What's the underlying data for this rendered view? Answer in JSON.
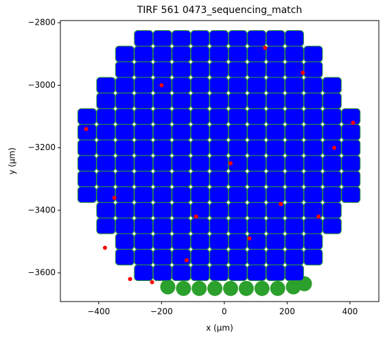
{
  "chart_data": {
    "type": "scatter",
    "title": "TIRF 561 0473_sequencing_match",
    "xlabel": "x (µm)",
    "ylabel": "y (µm)",
    "xlim": [
      -522,
      492
    ],
    "ylim": [
      -3692,
      -2793
    ],
    "xticks": [
      {
        "value": -400,
        "label": "−400"
      },
      {
        "value": -200,
        "label": "−200"
      },
      0,
      200,
      400
    ],
    "yticks": [
      {
        "value": -3600,
        "label": "−3600"
      },
      {
        "value": -3400,
        "label": "−3400"
      },
      {
        "value": -3200,
        "label": "−3200"
      },
      {
        "value": -3000,
        "label": "−3000"
      },
      {
        "value": -2800,
        "label": "−2800"
      }
    ],
    "grid": false,
    "series": [
      {
        "color": "#2ca02c",
        "marker": "circle",
        "x": [
          -180,
          -130,
          -80,
          -30,
          20,
          70,
          120,
          170,
          220,
          255
        ],
        "values": [
          -3645,
          -3650,
          -3650,
          -3650,
          -3650,
          -3650,
          -3650,
          -3650,
          -3645,
          -3635
        ]
      },
      {
        "color": "#0000ff",
        "marker": "square",
        "x": [
          -257,
          -197,
          -137,
          -77,
          -17,
          43,
          103,
          163,
          223,
          -317,
          -257,
          -197,
          -137,
          -77,
          -17,
          43,
          103,
          163,
          223,
          283,
          -317,
          -257,
          -197,
          -137,
          -77,
          -17,
          43,
          103,
          163,
          223,
          283,
          -377,
          -317,
          -257,
          -197,
          -137,
          -77,
          -17,
          43,
          103,
          163,
          223,
          283,
          343,
          -377,
          -317,
          -257,
          -197,
          -137,
          -77,
          -17,
          43,
          103,
          163,
          223,
          283,
          343,
          -437,
          -377,
          -317,
          -257,
          -197,
          -137,
          -77,
          -17,
          43,
          103,
          163,
          223,
          283,
          343,
          403,
          -437,
          -377,
          -317,
          -257,
          -197,
          -137,
          -77,
          -17,
          43,
          103,
          163,
          223,
          283,
          343,
          403,
          -437,
          -377,
          -317,
          -257,
          -197,
          -137,
          -77,
          -17,
          43,
          103,
          163,
          223,
          283,
          343,
          403,
          -437,
          -377,
          -317,
          -257,
          -197,
          -137,
          -77,
          -17,
          43,
          103,
          163,
          223,
          283,
          343,
          403,
          -437,
          -377,
          -317,
          -257,
          -197,
          -137,
          -77,
          -17,
          43,
          103,
          163,
          223,
          283,
          343,
          403,
          -437,
          -377,
          -317,
          -257,
          -197,
          -137,
          -77,
          -17,
          43,
          103,
          163,
          223,
          283,
          343,
          403,
          -377,
          -317,
          -257,
          -197,
          -137,
          -77,
          -17,
          43,
          103,
          163,
          223,
          283,
          343,
          -377,
          -317,
          -257,
          -197,
          -137,
          -77,
          -17,
          43,
          103,
          163,
          223,
          283,
          343,
          -317,
          -257,
          -197,
          -137,
          -77,
          -17,
          43,
          103,
          163,
          223,
          283,
          -317,
          -257,
          -197,
          -137,
          -77,
          -17,
          43,
          103,
          163,
          223,
          283,
          -257,
          -197,
          -137,
          -77,
          -17,
          43,
          103,
          163,
          223
        ],
        "values": [
          -2850,
          -2850,
          -2850,
          -2850,
          -2850,
          -2850,
          -2850,
          -2850,
          -2850,
          -2900,
          -2900,
          -2900,
          -2900,
          -2900,
          -2900,
          -2900,
          -2900,
          -2900,
          -2900,
          -2900,
          -2950,
          -2950,
          -2950,
          -2950,
          -2950,
          -2950,
          -2950,
          -2950,
          -2950,
          -2950,
          -2950,
          -3000,
          -3000,
          -3000,
          -3000,
          -3000,
          -3000,
          -3000,
          -3000,
          -3000,
          -3000,
          -3000,
          -3000,
          -3000,
          -3050,
          -3050,
          -3050,
          -3050,
          -3050,
          -3050,
          -3050,
          -3050,
          -3050,
          -3050,
          -3050,
          -3050,
          -3050,
          -3100,
          -3100,
          -3100,
          -3100,
          -3100,
          -3100,
          -3100,
          -3100,
          -3100,
          -3100,
          -3100,
          -3100,
          -3100,
          -3100,
          -3100,
          -3150,
          -3150,
          -3150,
          -3150,
          -3150,
          -3150,
          -3150,
          -3150,
          -3150,
          -3150,
          -3150,
          -3150,
          -3150,
          -3150,
          -3150,
          -3200,
          -3200,
          -3200,
          -3200,
          -3200,
          -3200,
          -3200,
          -3200,
          -3200,
          -3200,
          -3200,
          -3200,
          -3200,
          -3200,
          -3200,
          -3250,
          -3250,
          -3250,
          -3250,
          -3250,
          -3250,
          -3250,
          -3250,
          -3250,
          -3250,
          -3250,
          -3250,
          -3250,
          -3250,
          -3250,
          -3300,
          -3300,
          -3300,
          -3300,
          -3300,
          -3300,
          -3300,
          -3300,
          -3300,
          -3300,
          -3300,
          -3300,
          -3300,
          -3300,
          -3300,
          -3350,
          -3350,
          -3350,
          -3350,
          -3350,
          -3350,
          -3350,
          -3350,
          -3350,
          -3350,
          -3350,
          -3350,
          -3350,
          -3350,
          -3350,
          -3400,
          -3400,
          -3400,
          -3400,
          -3400,
          -3400,
          -3400,
          -3400,
          -3400,
          -3400,
          -3400,
          -3400,
          -3400,
          -3450,
          -3450,
          -3450,
          -3450,
          -3450,
          -3450,
          -3450,
          -3450,
          -3450,
          -3450,
          -3450,
          -3450,
          -3450,
          -3500,
          -3500,
          -3500,
          -3500,
          -3500,
          -3500,
          -3500,
          -3500,
          -3500,
          -3500,
          -3500,
          -3550,
          -3550,
          -3550,
          -3550,
          -3550,
          -3550,
          -3550,
          -3550,
          -3550,
          -3550,
          -3550,
          -3600,
          -3600,
          -3600,
          -3600,
          -3600,
          -3600,
          -3600,
          -3600,
          -3600
        ]
      },
      {
        "color": "#ff0000",
        "marker": "circle",
        "x": [
          -440,
          -350,
          -300,
          -230,
          -120,
          80,
          180,
          300,
          410,
          -200,
          20,
          250,
          -90,
          350,
          -380,
          130
        ],
        "values": [
          -3140,
          -3360,
          -3620,
          -3630,
          -3560,
          -3490,
          -3380,
          -3420,
          -3120,
          -3000,
          -3250,
          -2960,
          -3420,
          -3200,
          -3520,
          -2880
        ]
      }
    ]
  }
}
